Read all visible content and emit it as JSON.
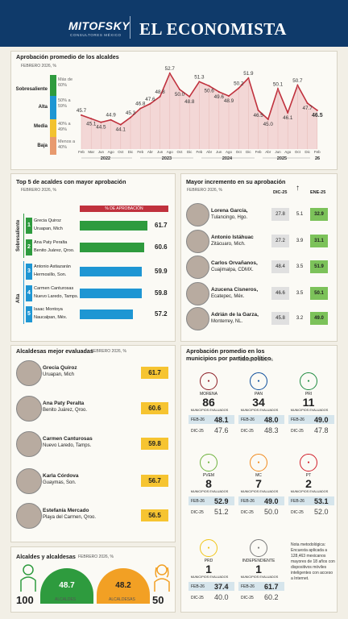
{
  "header": {
    "brand1": "MITOFSKY",
    "brand1_sub": "CONSULTORES MÉXICO",
    "brand2": "EL ECONOMISTA"
  },
  "colors": {
    "sobresaliente": "#2e9b3e",
    "alta": "#1e96d3",
    "media": "#f2c230",
    "baja": "#e89a6e",
    "line": "#c0313d",
    "yellow": "#f6c431"
  },
  "approval": {
    "title": "Aprobación promedio de los alcaldes",
    "subtitle": "FEBRERO 2026, %",
    "bands": [
      {
        "name": "Sobresaliente",
        "range": "Más de 60%"
      },
      {
        "name": "Alta",
        "range": "50% a 59%"
      },
      {
        "name": "Media",
        "range": "40% a 49%"
      },
      {
        "name": "Baja",
        "range": "Menos a 40%"
      }
    ]
  },
  "chart_data": {
    "type": "line",
    "ylim": [
      40,
      55
    ],
    "x": [
      "Feb",
      "Mar",
      "Jun",
      "Ago",
      "Oct",
      "Dic",
      "Feb",
      "Abr",
      "Jun",
      "Ago",
      "Oct",
      "Dic",
      "Feb",
      "Abr",
      "Jun",
      "Ago",
      "Oct",
      "Dic",
      "Feb",
      "Abr",
      "Jun",
      "Ago",
      "Oct",
      "Dic",
      "Feb"
    ],
    "values": [
      45.7,
      45.1,
      44.5,
      44.9,
      44.1,
      45.3,
      46.8,
      47.6,
      48.8,
      52.7,
      50.0,
      48.8,
      51.3,
      50.6,
      49.6,
      48.9,
      50.2,
      51.9,
      46.5,
      45.0,
      50.1,
      46.1,
      50.7,
      47.7,
      46.5
    ],
    "year_labels": [
      "2022",
      "2023",
      "2024",
      "2025",
      "26"
    ]
  },
  "top5": {
    "title": "Top 5 de acaldes con mayor aprobación",
    "subtitle": "FEBRERO 2026, %",
    "col_header": "% DE APROBACIÓN",
    "group1": "Sobresaliente",
    "group2": "Alta",
    "rows": [
      {
        "n": "1",
        "name": "Grecia Quiroz",
        "city": "Uruapan, Mich",
        "value": "61.7",
        "v": 61.7
      },
      {
        "n": "2",
        "name": "Ana Paty Peralta",
        "city": "Benito Juárez, Qroo.",
        "value": "60.6",
        "v": 60.6
      },
      {
        "n": "3",
        "name": "Antonio Astiazarán",
        "city": "Hermosillo, Son.",
        "value": "59.9",
        "v": 59.9
      },
      {
        "n": "4",
        "name": "Carmen Canturosas",
        "city": "Nuevo Laredo, Tamps.",
        "value": "59.8",
        "v": 59.8
      },
      {
        "n": "5",
        "name": "Isaac Montoya",
        "city": "Naucalpan, Méx.",
        "value": "57.2",
        "v": 57.2
      }
    ]
  },
  "increase": {
    "title": "Mayor incremento en su aprobación",
    "subtitle": "FEBRERO 2026, %",
    "col1": "DIC-25",
    "col2": "ENE-25",
    "rows": [
      {
        "name": "Lorena García,",
        "city": "Tulancingo, Hgo.",
        "a": "27.8",
        "d": "5.1",
        "b": "32.9"
      },
      {
        "name": "Antonio Istáhuac",
        "city": "Zitácuaro, Mich.",
        "a": "27.2",
        "d": "3.9",
        "b": "31.1"
      },
      {
        "name": "Carlos Orvañanos,",
        "city": "Cuajimalpa, CDMX.",
        "a": "48.4",
        "d": "3.5",
        "b": "51.9"
      },
      {
        "name": "Azucena Cisneros,",
        "city": "Ecatepec, Méx.",
        "a": "46.6",
        "d": "3.5",
        "b": "50.1"
      },
      {
        "name": "Adrián de la Garza,",
        "city": "Monterrey, NL.",
        "a": "45.8",
        "d": "3.2",
        "b": "49.0"
      }
    ]
  },
  "women": {
    "title": "Alcaldesas mejor evaluadas",
    "subtitle": "FEBRERO 2026, %",
    "rows": [
      {
        "name": "Grecia Quiroz",
        "city": "Uruapan, Mich",
        "value": "61.7"
      },
      {
        "name": "Ana Paty Peralta",
        "city": "Benito Juárez, Qroo.",
        "value": "60.6"
      },
      {
        "name": "Carmen Canturosas",
        "city": "Nuevo Laredo, Tamps.",
        "value": "59.8"
      },
      {
        "name": "Karla Córdova",
        "city": "Guaymas, Son.",
        "value": "56.7"
      },
      {
        "name": "Estefanía Mercado",
        "city": "Playa del Carmen, Qroo.",
        "value": "56.5"
      }
    ]
  },
  "gender": {
    "title": "Alcaldes y alcaldesas",
    "subtitle": "FEBRERO 2026, %",
    "men_count": "100",
    "men_value": "48.7",
    "men_label": "ALCALDES",
    "women_value": "48.2",
    "women_label": "ALCALDESAS",
    "women_count": "50"
  },
  "parties": {
    "title": "Aprobación promedio en los municipios por partido político",
    "subtitle": "FEBRERO 2026, %",
    "evaluated": "MUNICIPIOS EVALUADOS",
    "feb": "FEB-26",
    "dic": "DIC-25",
    "items": [
      {
        "logo": "morena",
        "name": "MORENA",
        "count": "86",
        "feb": "48.1",
        "dic": "47.6"
      },
      {
        "logo": "PAN",
        "name": "PAN",
        "count": "34",
        "feb": "48.0",
        "dic": "48.3"
      },
      {
        "logo": "PRI",
        "name": "PRI",
        "count": "11",
        "feb": "49.0",
        "dic": "47.8"
      },
      {
        "logo": "PVEM",
        "name": "PVEM",
        "count": "8",
        "feb": "52.9",
        "dic": "51.2"
      },
      {
        "logo": "MC",
        "name": "MC",
        "count": "7",
        "feb": "49.0",
        "dic": "50.0"
      },
      {
        "logo": "PT",
        "name": "PT",
        "count": "2",
        "feb": "53.1",
        "dic": "52.0"
      },
      {
        "logo": "PRD",
        "name": "PRD",
        "count": "1",
        "feb": "37.4",
        "dic": "40.0"
      },
      {
        "logo": "IND",
        "name": "INDEPENDIENTE",
        "count": "1",
        "feb": "61.7",
        "dic": "60.2"
      }
    ]
  },
  "note": "Nota metodológica: Encuesta aplicada a 128,463 mexicanos mayores de 18 años con dispositivos móviles inteligentes con acceso a Internet."
}
